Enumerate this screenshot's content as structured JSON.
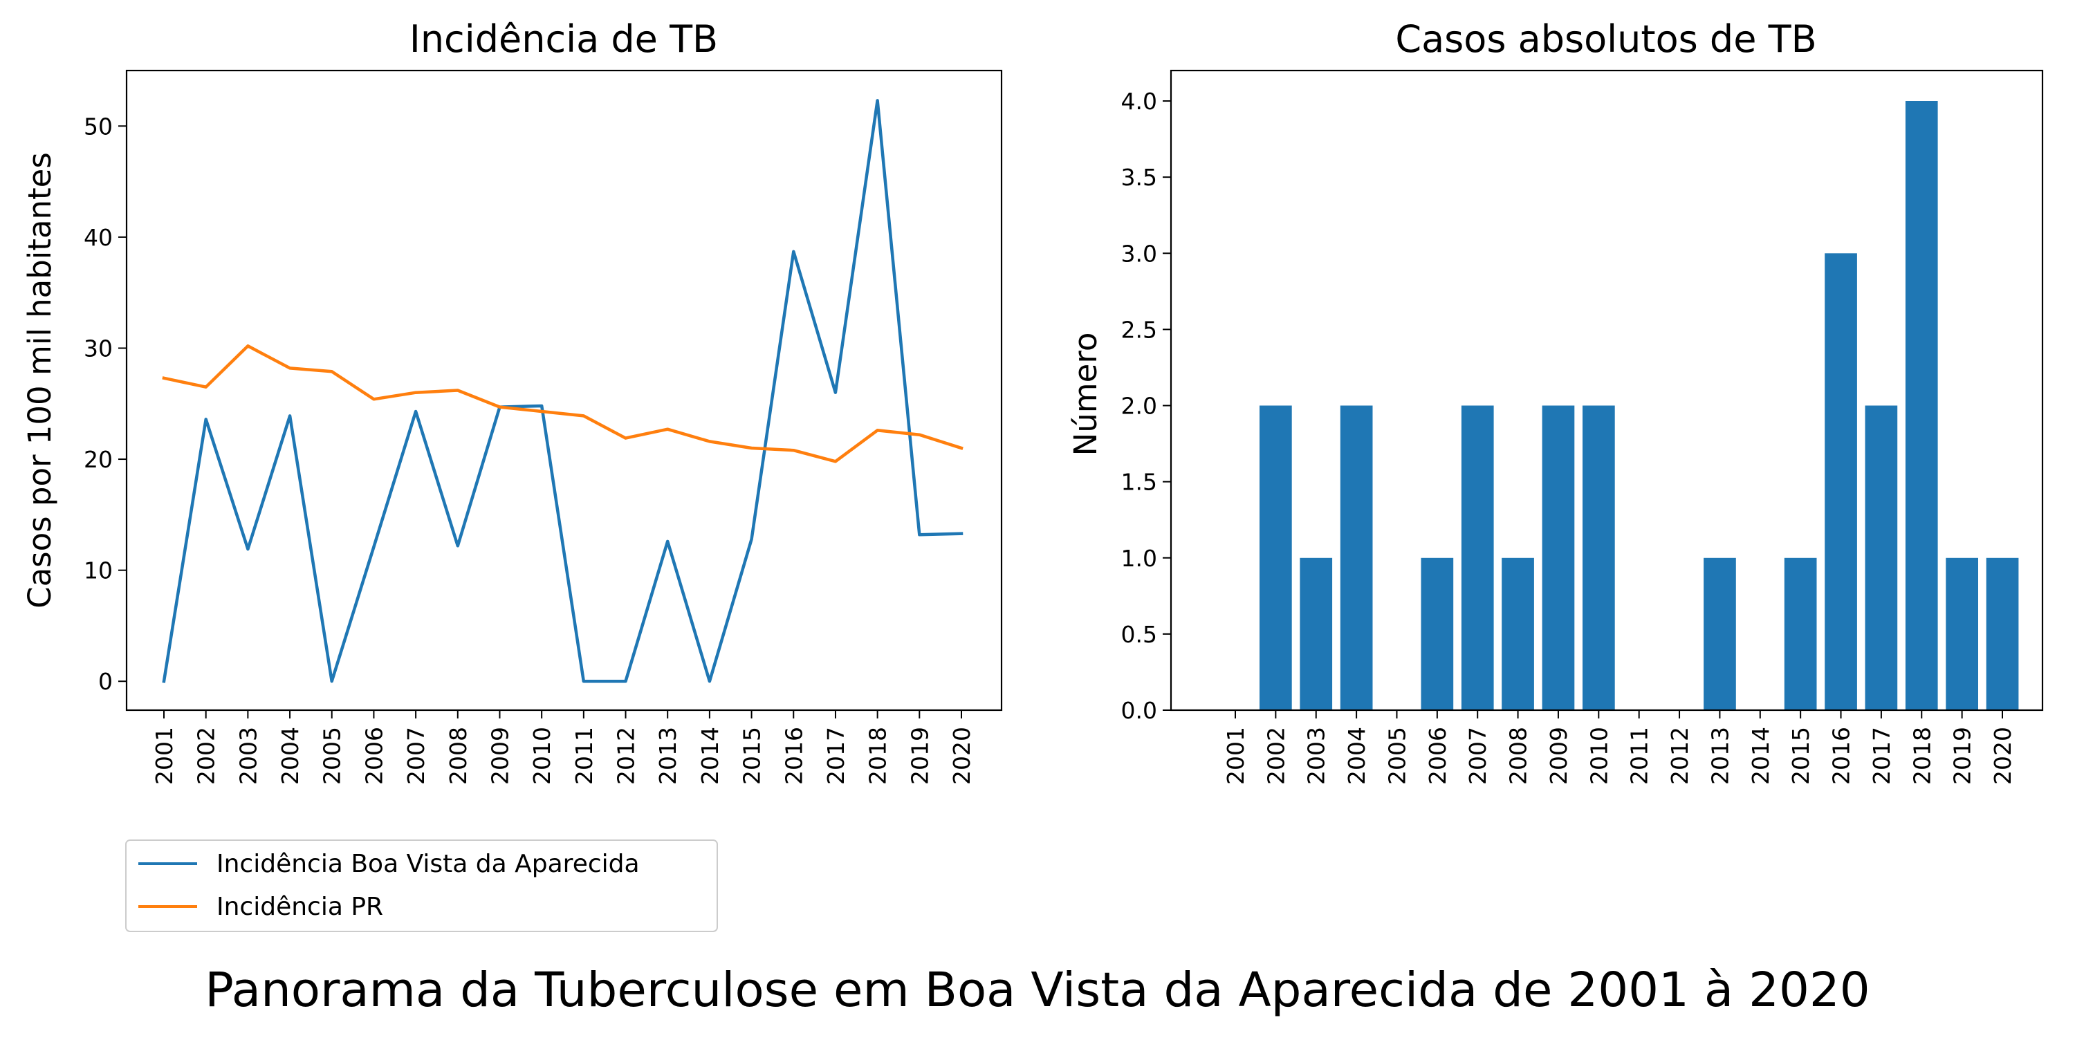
{
  "figure": {
    "suptitle": "Panorama da Tuberculose em Boa Vista da Aparecida de 2001 à 2020"
  },
  "colors": {
    "series_1": "#1f77b4",
    "series_2": "#ff7f0e",
    "bar": "#1f77b4"
  },
  "chart_data": [
    {
      "type": "line",
      "title": "Incidência de TB",
      "xlabel": "",
      "ylabel": "Casos por 100 mil habitantes",
      "categories": [
        "2001",
        "2002",
        "2003",
        "2004",
        "2005",
        "2006",
        "2007",
        "2008",
        "2009",
        "2010",
        "2011",
        "2012",
        "2013",
        "2014",
        "2015",
        "2016",
        "2017",
        "2018",
        "2019",
        "2020"
      ],
      "ylim": [
        -2.6,
        55
      ],
      "yticks": [
        0,
        10,
        20,
        30,
        40,
        50
      ],
      "ytick_labels": [
        "0",
        "10",
        "20",
        "30",
        "40",
        "50"
      ],
      "series": [
        {
          "name": "Incidência Boa Vista da Aparecida",
          "color": "#1f77b4",
          "values": [
            0,
            23.6,
            11.9,
            23.9,
            0,
            12.1,
            24.3,
            12.2,
            24.7,
            24.8,
            0,
            0,
            12.6,
            0,
            12.8,
            38.7,
            26.0,
            52.3,
            13.2,
            13.3
          ]
        },
        {
          "name": "Incidência PR",
          "color": "#ff7f0e",
          "values": [
            27.3,
            26.5,
            30.2,
            28.2,
            27.9,
            25.4,
            26.0,
            26.2,
            24.7,
            24.3,
            23.9,
            21.9,
            22.7,
            21.6,
            21.0,
            20.8,
            19.8,
            22.6,
            22.2,
            21.0
          ]
        }
      ],
      "grid": false,
      "legend_position": "below-left"
    },
    {
      "type": "bar",
      "title": "Casos absolutos de TB",
      "xlabel": "",
      "ylabel": "Número",
      "categories": [
        "2001",
        "2002",
        "2003",
        "2004",
        "2005",
        "2006",
        "2007",
        "2008",
        "2009",
        "2010",
        "2011",
        "2012",
        "2013",
        "2014",
        "2015",
        "2016",
        "2017",
        "2018",
        "2019",
        "2020"
      ],
      "values": [
        0,
        2,
        1,
        2,
        0,
        1,
        2,
        1,
        2,
        2,
        0,
        0,
        1,
        0,
        1,
        3,
        2,
        4,
        1,
        1
      ],
      "ylim": [
        0,
        4.2
      ],
      "yticks": [
        0,
        0.5,
        1,
        1.5,
        2,
        2.5,
        3,
        3.5,
        4
      ],
      "ytick_labels": [
        "0.0",
        "0.5",
        "1.0",
        "1.5",
        "2.0",
        "2.5",
        "3.0",
        "3.5",
        "4.0"
      ],
      "grid": false
    }
  ]
}
